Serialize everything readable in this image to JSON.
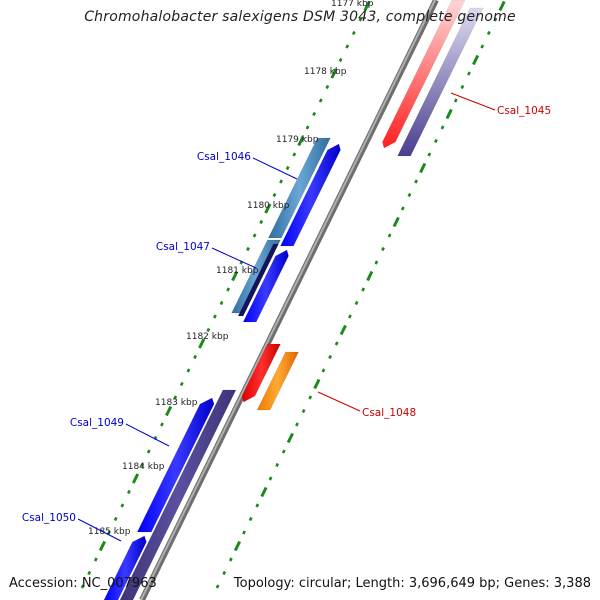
{
  "title": "Chromohalobacter salexigens DSM 3043, complete genome",
  "footer": {
    "accession": "Accession: NC_007963",
    "summary": "Topology: circular; Length: 3,696,649 bp; Genes: 3,388"
  },
  "ticks": [
    "1177 kbp",
    "1178 kbp",
    "1179 kbp",
    "1180 kbp",
    "1181 kbp",
    "1182 kbp",
    "1183 kbp",
    "1184 kbp",
    "1185 kbp"
  ],
  "gene_labels": [
    {
      "id": "Csal_1045",
      "color": "#cc0000"
    },
    {
      "id": "Csal_1046",
      "color": "#0000cc"
    },
    {
      "id": "Csal_1047",
      "color": "#0000cc"
    },
    {
      "id": "Csal_1048",
      "color": "#cc0000"
    },
    {
      "id": "Csal_1049",
      "color": "#0000cc"
    },
    {
      "id": "Csal_1050",
      "color": "#0000cc"
    }
  ],
  "colors": {
    "backbone": "#8a8a8a",
    "tick": "#1a8a1a",
    "cds_forward": "#0000ee",
    "cds_dark": "#4a3f8f",
    "cds_light_blue": "#4a86b8",
    "cds_red": "#ee0000",
    "cds_orange": "#ff8800"
  }
}
